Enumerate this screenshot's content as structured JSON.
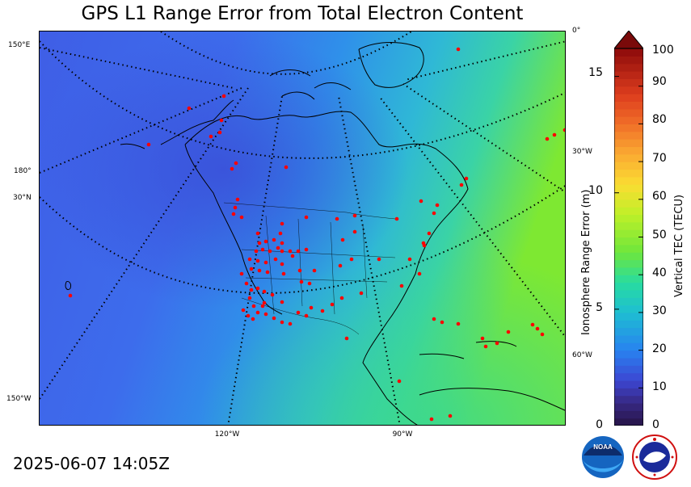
{
  "title": "GPS L1 Range Error from Total Electron Content",
  "timestamp": "2025-06-07 14:05Z",
  "map": {
    "left_labels": [
      "150°E",
      "180°",
      "30°N",
      "150°W"
    ],
    "right_labels": [
      "0°",
      "30°W",
      "60°W"
    ],
    "bottom_labels": [
      "120°W",
      "90°W"
    ]
  },
  "colorbar": {
    "left_axis_title": "Ionosphere Range Error (m)",
    "right_axis_title": "Vertical TEC (TECU)",
    "left_ticks": [
      "0",
      "5",
      "10",
      "15"
    ],
    "right_ticks": [
      "0",
      "10",
      "20",
      "30",
      "40",
      "50",
      "60",
      "70",
      "80",
      "90",
      "100"
    ],
    "range_tecu": [
      0,
      100
    ],
    "range_m": [
      0,
      16.2
    ],
    "extend": "max"
  },
  "colors": {
    "background_low_tec": "#3f63e8",
    "mid_tec": "#2f9be8",
    "high_tec": "#6ee838",
    "station": "#ff0000",
    "grid": "#000000"
  },
  "logos": [
    "noaa-logo",
    "nws-logo"
  ]
}
